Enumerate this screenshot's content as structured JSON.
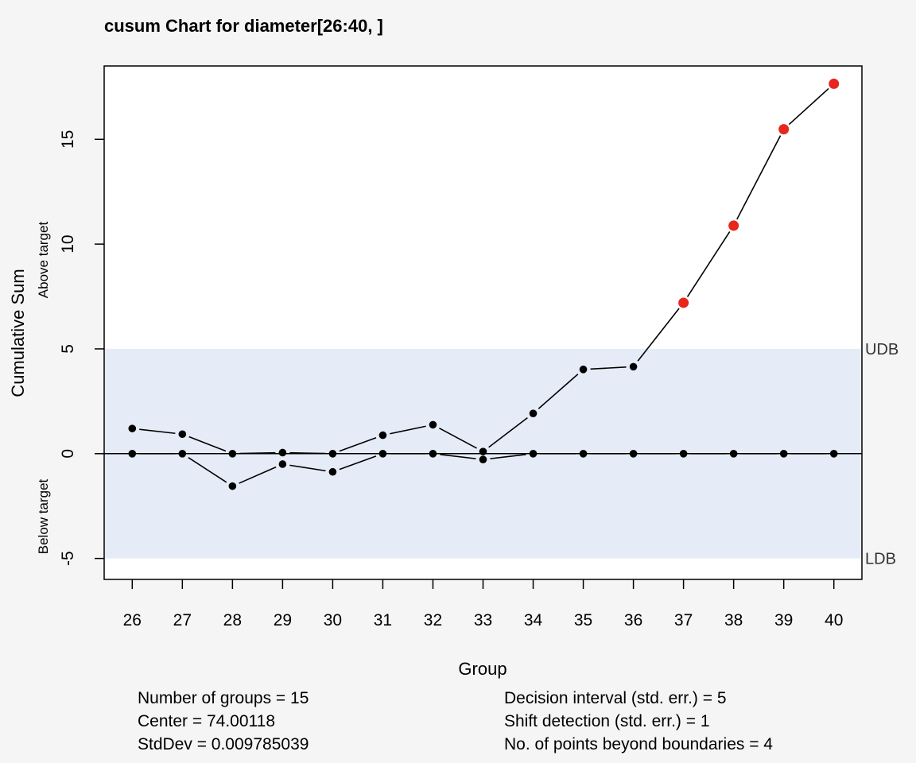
{
  "chart_data": {
    "type": "line",
    "title": "cusum Chart for diameter[26:40, ]",
    "xlabel": "Group",
    "ylabel": "Cumulative Sum",
    "ylabel_upper": "Above target",
    "ylabel_lower": "Below target",
    "x": [
      26,
      27,
      28,
      29,
      30,
      31,
      32,
      33,
      34,
      35,
      36,
      37,
      38,
      39,
      40
    ],
    "x_tick_labels": [
      "26",
      "27",
      "28",
      "29",
      "30",
      "31",
      "32",
      "33",
      "34",
      "35",
      "36",
      "37",
      "38",
      "39",
      "40"
    ],
    "y_ticks": [
      -5,
      0,
      5,
      10,
      15
    ],
    "y_tick_labels": [
      "-5",
      "0",
      "5",
      "10",
      "15"
    ],
    "ylim": [
      -6,
      18.5
    ],
    "xlim": [
      25.44,
      40.56
    ],
    "center_line": 0,
    "upper_boundary": {
      "value": 5,
      "label": "UDB"
    },
    "lower_boundary": {
      "value": -5,
      "label": "LDB"
    },
    "series": [
      {
        "values": [
          1.2,
          0.93,
          0.0,
          0.05,
          0.0,
          0.88,
          1.38,
          0.1,
          1.92,
          4.02,
          4.15,
          7.2,
          10.88,
          15.48,
          17.65
        ],
        "violations": [
          false,
          false,
          false,
          false,
          false,
          false,
          false,
          false,
          false,
          false,
          false,
          true,
          true,
          true,
          true
        ]
      },
      {
        "values": [
          0.0,
          0.0,
          -1.55,
          -0.5,
          -0.87,
          0.0,
          0.0,
          -0.28,
          0.0,
          0.0,
          0.0,
          0.0,
          0.0,
          0.0,
          0.0
        ],
        "violations": [
          false,
          false,
          false,
          false,
          false,
          false,
          false,
          false,
          false,
          false,
          false,
          false,
          false,
          false,
          false
        ]
      }
    ],
    "colors": {
      "background": "#f5f5f5",
      "plot_background": "#ffffff",
      "boundary_band": "#e6ecf7",
      "line": "#000000",
      "point": "#000000",
      "violation_point": "#e8261d",
      "boundary_label": "#333333"
    }
  },
  "stats": {
    "left": [
      "Number of groups = 15",
      "Center = 74.00118",
      "StdDev = 0.009785039"
    ],
    "right": [
      "Decision interval (std. err.) = 5",
      "Shift detection (std. err.) = 1",
      "No. of points beyond boundaries = 4"
    ]
  }
}
